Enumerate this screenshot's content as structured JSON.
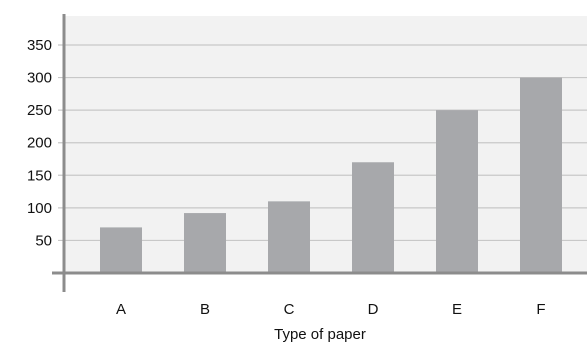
{
  "chart_data": {
    "type": "bar",
    "title": "",
    "xlabel": "Type of paper",
    "ylabel": "",
    "categories": [
      "A",
      "B",
      "C",
      "D",
      "E",
      "F"
    ],
    "values": [
      70,
      92,
      110,
      170,
      250,
      300
    ],
    "ylim": [
      0,
      380
    ],
    "yticks": [
      50,
      100,
      150,
      200,
      250,
      300,
      350
    ],
    "grid": true,
    "colors": {
      "bar": "#a7a8ab",
      "plot_background": "#f2f2f2",
      "grid": "#c8c8c8",
      "axis": "#8c8c8c"
    }
  }
}
